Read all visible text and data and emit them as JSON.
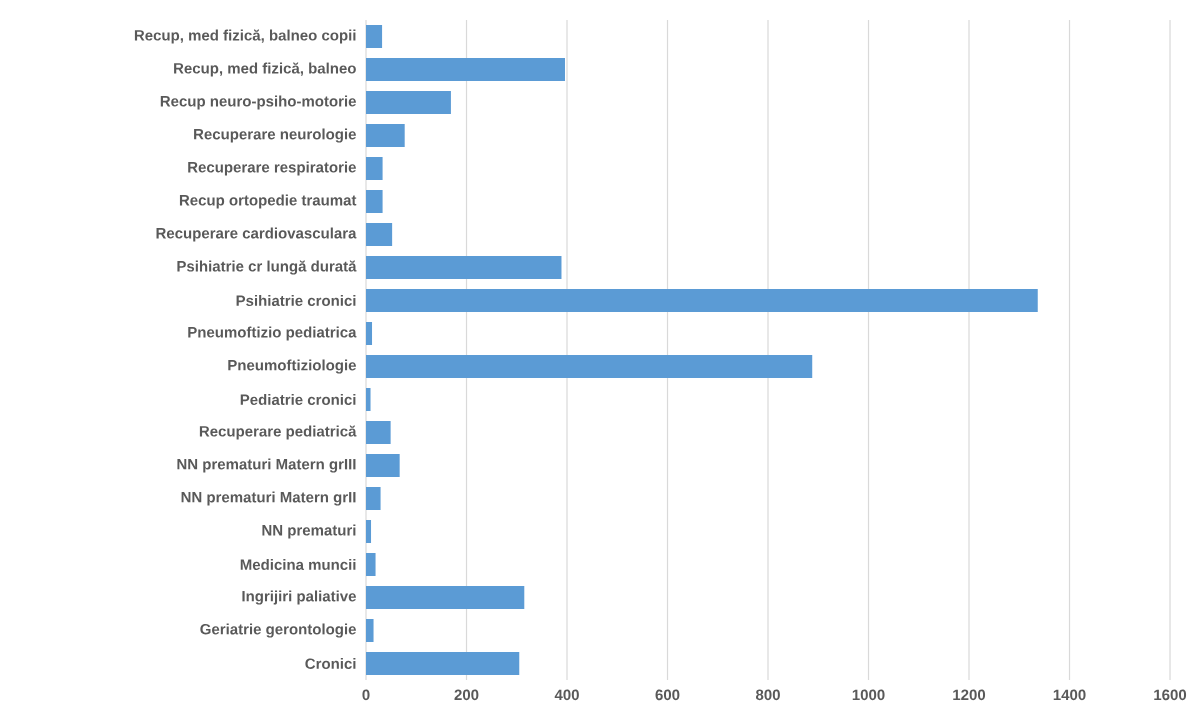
{
  "chart_data": {
    "type": "bar",
    "orientation": "horizontal",
    "categories": [
      "Recup, med fizică, balneo copii",
      "Recup, med fizică, balneo",
      "Recup neuro-psiho-motorie",
      "Recuperare neurologie",
      "Recuperare respiratorie",
      "Recup ortopedie traumat",
      "Recuperare cardiovasculara",
      "Psihiatrie cr lungă durată",
      "Psihiatrie cronici",
      "Pneumoftizio pediatrica",
      "Pneumoftiziologie",
      "Pediatrie cronici",
      "Recuperare pediatrică",
      "NN prematuri Matern grIII",
      "NN prematuri Matern grII",
      "NN prematuri",
      "Medicina muncii",
      "Ingrijiri paliative",
      "Geriatrie gerontologie",
      "Cronici"
    ],
    "values": [
      32,
      396,
      169,
      77,
      33,
      33,
      52,
      389,
      1337,
      12,
      888,
      9,
      49,
      67,
      29,
      10,
      19,
      315,
      15,
      305
    ],
    "color": "#5b9bd5",
    "xlim": [
      0,
      1600
    ],
    "xticks": [
      0,
      200,
      400,
      600,
      800,
      1000,
      1200,
      1400,
      1600
    ],
    "grid": "x"
  }
}
